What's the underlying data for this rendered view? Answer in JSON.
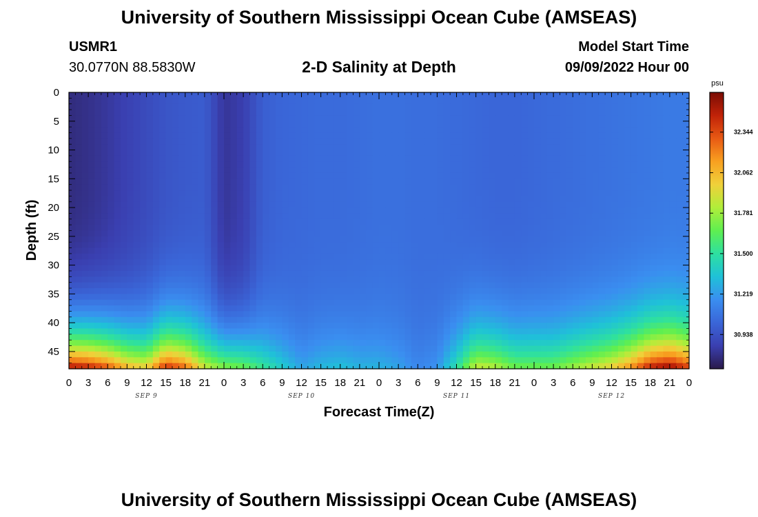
{
  "header": {
    "title": "University of Southern Mississippi Ocean Cube (AMSEAS)",
    "station": "USMR1",
    "location": "30.0770N  88.5830W",
    "subtitle": "2-D Salinity at Depth",
    "model_label": "Model Start Time",
    "model_time": "09/09/2022 Hour 00"
  },
  "footer": {
    "title": "University of Southern Mississippi Ocean Cube (AMSEAS)"
  },
  "chart_data": {
    "type": "heatmap",
    "title": "2-D Salinity at Depth",
    "xlabel": "Forecast Time(Z)",
    "ylabel": "Depth (ft)",
    "x_tick_labels": [
      "0",
      "3",
      "6",
      "9",
      "12",
      "15",
      "18",
      "21",
      "0",
      "3",
      "6",
      "9",
      "12",
      "15",
      "18",
      "21",
      "0",
      "3",
      "6",
      "9",
      "12",
      "15",
      "18",
      "21",
      "0",
      "3",
      "6",
      "9",
      "12",
      "15",
      "18",
      "21",
      "0"
    ],
    "date_labels": [
      "SEP 9",
      "SEP 10",
      "SEP 11",
      "SEP 12"
    ],
    "xlim_hours": [
      0,
      96
    ],
    "y_ticks": [
      0,
      5,
      10,
      15,
      20,
      25,
      30,
      35,
      40,
      45
    ],
    "ylim": [
      0,
      48
    ],
    "y_inverted": true,
    "colorbar": {
      "unit": "psu",
      "tick_labels": [
        "32.344",
        "32.062",
        "31.781",
        "31.500",
        "31.219",
        "30.938"
      ],
      "tick_values": [
        32.344,
        32.062,
        31.781,
        31.5,
        31.219,
        30.938
      ],
      "range": [
        30.7,
        32.62
      ],
      "colors": [
        "#2a1a4a",
        "#3a3fb0",
        "#3a66d8",
        "#3a8ef0",
        "#1fc1d8",
        "#2ee0a0",
        "#5fef50",
        "#b0ee3a",
        "#f0d03a",
        "#f8a020",
        "#e85a14",
        "#c02208",
        "#7a0c04"
      ]
    },
    "bottom_water_salinity_at_x_ticks": [
      32.55,
      32.5,
      32.35,
      32.1,
      32.0,
      32.45,
      32.3,
      31.9,
      31.75,
      31.7,
      31.55,
      31.4,
      31.25,
      31.32,
      31.35,
      31.3,
      31.3,
      31.25,
      31.15,
      31.2,
      31.5,
      31.9,
      31.85,
      31.7,
      31.7,
      31.7,
      31.8,
      31.9,
      32.0,
      32.2,
      32.5,
      32.6,
      32.4
    ],
    "surface_salinity_at_x_ticks": [
      30.78,
      30.8,
      30.83,
      30.87,
      30.91,
      30.95,
      30.97,
      30.98,
      30.82,
      30.86,
      30.99,
      31.02,
      31.03,
      31.04,
      31.04,
      31.05,
      31.06,
      31.06,
      31.05,
      31.05,
      31.04,
      31.03,
      31.02,
      31.02,
      31.03,
      31.04,
      31.05,
      31.06,
      31.07,
      31.08,
      31.09,
      31.1,
      31.1
    ]
  }
}
